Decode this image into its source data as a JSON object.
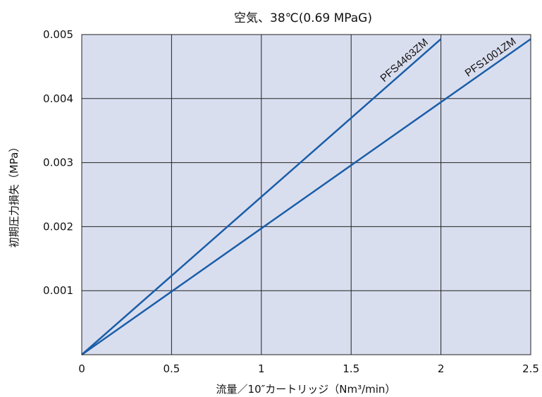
{
  "chart_data": {
    "type": "line",
    "title": "空気、38℃(0.69 MPaG)",
    "xlabel": "流量／10″カートリッジ（Nm³/min）",
    "ylabel": "初期圧力損失（MPa）",
    "xlim": [
      0,
      2.5
    ],
    "ylim": [
      0,
      0.005
    ],
    "x_ticks": [
      "0",
      "0.5",
      "1",
      "1.5",
      "2",
      "2.5"
    ],
    "y_ticks": [
      "0.001",
      "0.002",
      "0.003",
      "0.004",
      "0.005"
    ],
    "grid": true,
    "background_color": "#d9deef",
    "line_color": "#1a5ea8",
    "series": [
      {
        "name": "PFS4463ZM",
        "x": [
          0,
          2.0
        ],
        "y": [
          0,
          0.00493
        ]
      },
      {
        "name": "PFS1001ZM",
        "x": [
          0,
          2.5
        ],
        "y": [
          0,
          0.00493
        ]
      }
    ]
  }
}
